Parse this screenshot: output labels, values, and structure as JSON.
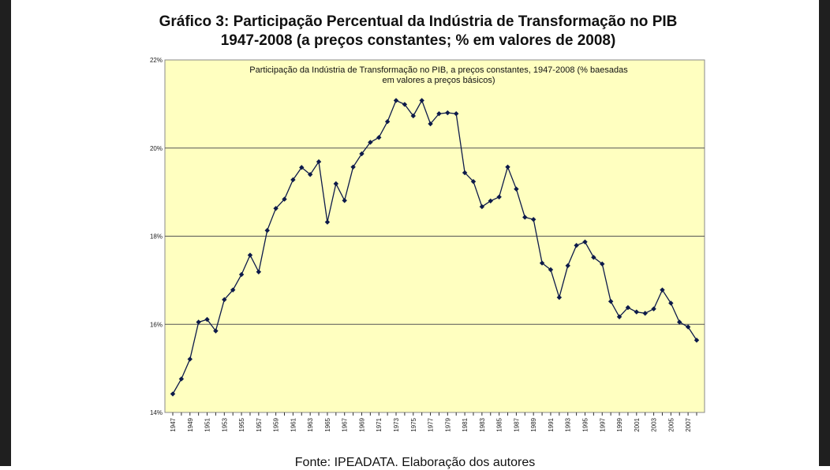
{
  "header": {
    "title_line1": "Gráfico 3: Participação Percentual da Indústria de Transformação no PIB",
    "title_line2": "1947-2008 (a preços constantes; % em valores de 2008)"
  },
  "footer": {
    "source": "Fonte: IPEADATA. Elaboração dos autores"
  },
  "chart_data": {
    "type": "line",
    "title_lines": [
      "Participação da Indústria de Transformação no PIB, a preços constantes, 1947-2008 (% baesadas",
      "em valores a preços básicos)"
    ],
    "ylim": [
      14,
      22
    ],
    "ytick_values": [
      14,
      16,
      18,
      20,
      22
    ],
    "ytick_labels": [
      "14%",
      "16%",
      "18%",
      "20%",
      "22%"
    ],
    "xtick_labels": [
      "1947",
      "1949",
      "1951",
      "1953",
      "1955",
      "1957",
      "1959",
      "1961",
      "1963",
      "1965",
      "1967",
      "1969",
      "1971",
      "1973",
      "1975",
      "1977",
      "1979",
      "1981",
      "1983",
      "1985",
      "1987",
      "1989",
      "1991",
      "1993",
      "1995",
      "1997",
      "1999",
      "2001",
      "2003",
      "2005",
      "2007"
    ],
    "grid": true,
    "plot_background": "#ffffc0",
    "line_color": "#0d1a4a",
    "years": [
      1947,
      1948,
      1949,
      1950,
      1951,
      1952,
      1953,
      1954,
      1955,
      1956,
      1957,
      1958,
      1959,
      1960,
      1961,
      1962,
      1963,
      1964,
      1965,
      1966,
      1967,
      1968,
      1969,
      1970,
      1971,
      1972,
      1973,
      1974,
      1975,
      1976,
      1977,
      1978,
      1979,
      1980,
      1981,
      1982,
      1983,
      1984,
      1985,
      1986,
      1987,
      1988,
      1989,
      1990,
      1991,
      1992,
      1993,
      1994,
      1995,
      1996,
      1997,
      1998,
      1999,
      2000,
      2001,
      2002,
      2003,
      2004,
      2005,
      2006,
      2007,
      2008
    ],
    "values": [
      14.42,
      14.76,
      15.21,
      16.05,
      16.11,
      15.85,
      16.56,
      16.78,
      17.13,
      17.57,
      17.19,
      18.13,
      18.63,
      18.84,
      19.28,
      19.56,
      19.4,
      19.69,
      18.32,
      19.19,
      18.81,
      19.57,
      19.87,
      20.13,
      20.24,
      20.6,
      21.08,
      20.99,
      20.73,
      21.08,
      20.55,
      20.78,
      20.8,
      20.78,
      19.44,
      19.24,
      18.67,
      18.8,
      18.89,
      19.57,
      19.07,
      18.43,
      18.38,
      17.39,
      17.24,
      16.61,
      17.33,
      17.79,
      17.87,
      17.52,
      17.37,
      16.52,
      16.17,
      16.38,
      16.28,
      16.25,
      16.35,
      16.78,
      16.48,
      16.05,
      15.94,
      15.64
    ]
  }
}
